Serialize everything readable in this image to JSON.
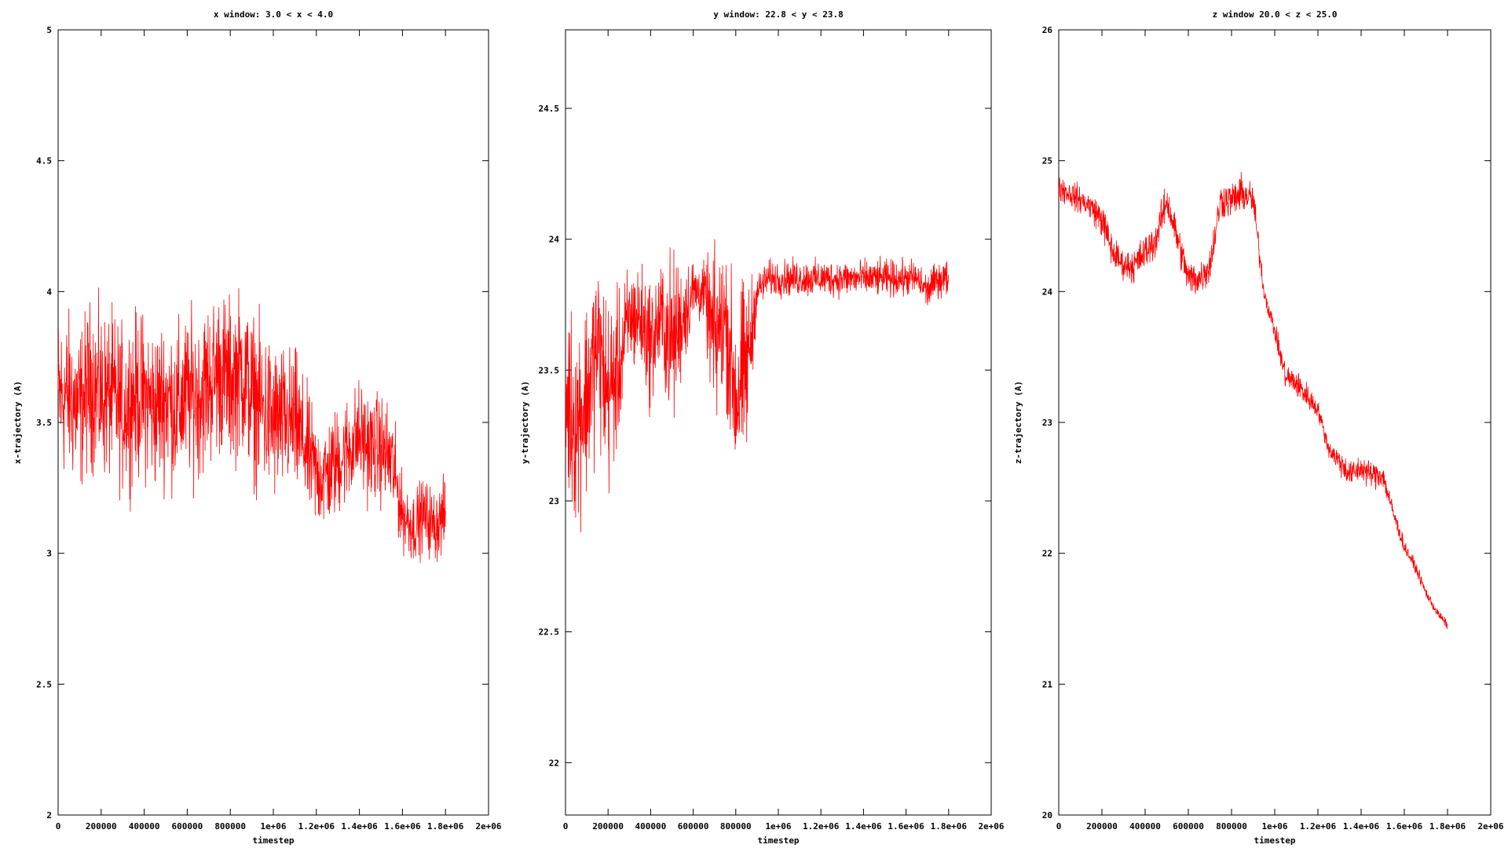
{
  "chart_data": [
    {
      "type": "line",
      "title": "x window: 3.0 < x < 4.0",
      "xlabel": "timestep",
      "ylabel": "x-trajectory (A)",
      "xlim": [
        0,
        2000000
      ],
      "ylim": [
        2,
        5
      ],
      "xticks": [
        "0",
        "200000",
        "400000",
        "600000",
        "800000",
        "1e+06",
        "1.2e+06",
        "1.4e+06",
        "1.6e+06",
        "1.8e+06",
        "2e+06"
      ],
      "yticks": [
        "2",
        "2.5",
        "3",
        "3.5",
        "4",
        "4.5",
        "5"
      ],
      "grid": false,
      "color": "#ff0000",
      "series": [
        {
          "x": [
            0,
            50000,
            100000,
            150000,
            200000,
            250000,
            300000,
            350000,
            400000,
            450000,
            500000,
            550000,
            600000,
            650000,
            700000,
            750000,
            800000,
            850000,
            900000,
            950000,
            1000000,
            1050000,
            1100000,
            1150000,
            1200000,
            1250000,
            1300000,
            1350000,
            1400000,
            1450000,
            1500000,
            1550000,
            1600000,
            1650000,
            1700000,
            1750000,
            1800000
          ],
          "y": [
            3.6,
            3.6,
            3.55,
            3.65,
            3.6,
            3.6,
            3.55,
            3.6,
            3.6,
            3.55,
            3.6,
            3.55,
            3.6,
            3.6,
            3.65,
            3.7,
            3.65,
            3.7,
            3.6,
            3.55,
            3.5,
            3.5,
            3.5,
            3.4,
            3.3,
            3.3,
            3.35,
            3.4,
            3.45,
            3.4,
            3.4,
            3.35,
            3.15,
            3.1,
            3.15,
            3.1,
            3.15
          ],
          "spread": [
            0.45,
            0.45,
            0.45,
            0.45,
            0.45,
            0.45,
            0.45,
            0.45,
            0.45,
            0.45,
            0.45,
            0.45,
            0.45,
            0.45,
            0.45,
            0.45,
            0.45,
            0.45,
            0.45,
            0.45,
            0.45,
            0.4,
            0.4,
            0.35,
            0.3,
            0.3,
            0.3,
            0.3,
            0.3,
            0.3,
            0.3,
            0.3,
            0.2,
            0.2,
            0.2,
            0.2,
            0.2
          ]
        }
      ]
    },
    {
      "type": "line",
      "title": "y window: 22.8 < y < 23.8",
      "xlabel": "timestep",
      "ylabel": "y-trajectory (A)",
      "xlim": [
        0,
        2000000
      ],
      "ylim": [
        21.8,
        24.8
      ],
      "xticks": [
        "0",
        "200000",
        "400000",
        "600000",
        "800000",
        "1e+06",
        "1.2e+06",
        "1.4e+06",
        "1.6e+06",
        "1.8e+06",
        "2e+06"
      ],
      "yticks": [
        "22",
        "22.5",
        "23",
        "23.5",
        "24",
        "24.5"
      ],
      "ytick_values": [
        22,
        22.5,
        23,
        23.5,
        24,
        24.5
      ],
      "grid": false,
      "color": "#ff0000",
      "series": [
        {
          "x": [
            0,
            50000,
            100000,
            150000,
            200000,
            250000,
            300000,
            350000,
            400000,
            450000,
            500000,
            550000,
            600000,
            650000,
            700000,
            750000,
            800000,
            850000,
            900000,
            950000,
            1000000,
            1050000,
            1100000,
            1150000,
            1200000,
            1250000,
            1300000,
            1350000,
            1400000,
            1450000,
            1500000,
            1550000,
            1600000,
            1650000,
            1700000,
            1750000,
            1800000
          ],
          "y": [
            23.4,
            23.3,
            23.4,
            23.6,
            23.4,
            23.5,
            23.7,
            23.7,
            23.6,
            23.7,
            23.6,
            23.7,
            23.8,
            23.8,
            23.6,
            23.7,
            23.4,
            23.5,
            23.8,
            23.85,
            23.85,
            23.85,
            23.85,
            23.85,
            23.85,
            23.85,
            23.85,
            23.85,
            23.85,
            23.85,
            23.85,
            23.85,
            23.85,
            23.85,
            23.8,
            23.85,
            23.85
          ],
          "spread": [
            0.55,
            0.55,
            0.55,
            0.5,
            0.55,
            0.4,
            0.3,
            0.3,
            0.35,
            0.3,
            0.5,
            0.3,
            0.2,
            0.15,
            0.5,
            0.4,
            0.55,
            0.5,
            0.1,
            0.1,
            0.1,
            0.1,
            0.1,
            0.1,
            0.1,
            0.1,
            0.1,
            0.1,
            0.1,
            0.1,
            0.1,
            0.1,
            0.1,
            0.1,
            0.1,
            0.1,
            0.1
          ]
        }
      ]
    },
    {
      "type": "line",
      "title": "z window 20.0 < z < 25.0",
      "xlabel": "timestep",
      "ylabel": "z-trajectory (A)",
      "xlim": [
        0,
        2000000
      ],
      "ylim": [
        20,
        26
      ],
      "xticks": [
        "0",
        "200000",
        "400000",
        "600000",
        "800000",
        "1e+06",
        "1.2e+06",
        "1.4e+06",
        "1.6e+06",
        "1.8e+06",
        "2e+06"
      ],
      "yticks": [
        "20",
        "21",
        "22",
        "23",
        "24",
        "25",
        "26"
      ],
      "grid": false,
      "color": "#ff0000",
      "series": [
        {
          "x": [
            0,
            50000,
            100000,
            150000,
            200000,
            250000,
            300000,
            350000,
            400000,
            450000,
            500000,
            550000,
            600000,
            650000,
            700000,
            750000,
            800000,
            850000,
            900000,
            950000,
            1000000,
            1050000,
            1100000,
            1150000,
            1200000,
            1250000,
            1300000,
            1350000,
            1400000,
            1450000,
            1500000,
            1550000,
            1600000,
            1650000,
            1700000,
            1750000,
            1800000
          ],
          "y": [
            24.8,
            24.75,
            24.7,
            24.65,
            24.55,
            24.3,
            24.2,
            24.2,
            24.3,
            24.4,
            24.7,
            24.4,
            24.1,
            24.1,
            24.2,
            24.7,
            24.7,
            24.75,
            24.7,
            24.0,
            23.7,
            23.35,
            23.3,
            23.2,
            23.1,
            22.8,
            22.7,
            22.6,
            22.65,
            22.6,
            22.6,
            22.3,
            22.05,
            21.9,
            21.7,
            21.55,
            21.45
          ],
          "spread": [
            0.15,
            0.15,
            0.15,
            0.15,
            0.2,
            0.2,
            0.15,
            0.2,
            0.2,
            0.2,
            0.2,
            0.2,
            0.2,
            0.2,
            0.2,
            0.2,
            0.2,
            0.2,
            0.2,
            0.1,
            0.1,
            0.15,
            0.15,
            0.15,
            0.1,
            0.1,
            0.15,
            0.15,
            0.15,
            0.15,
            0.15,
            0.1,
            0.08,
            0.06,
            0.06,
            0.05,
            0.05
          ]
        }
      ]
    }
  ]
}
